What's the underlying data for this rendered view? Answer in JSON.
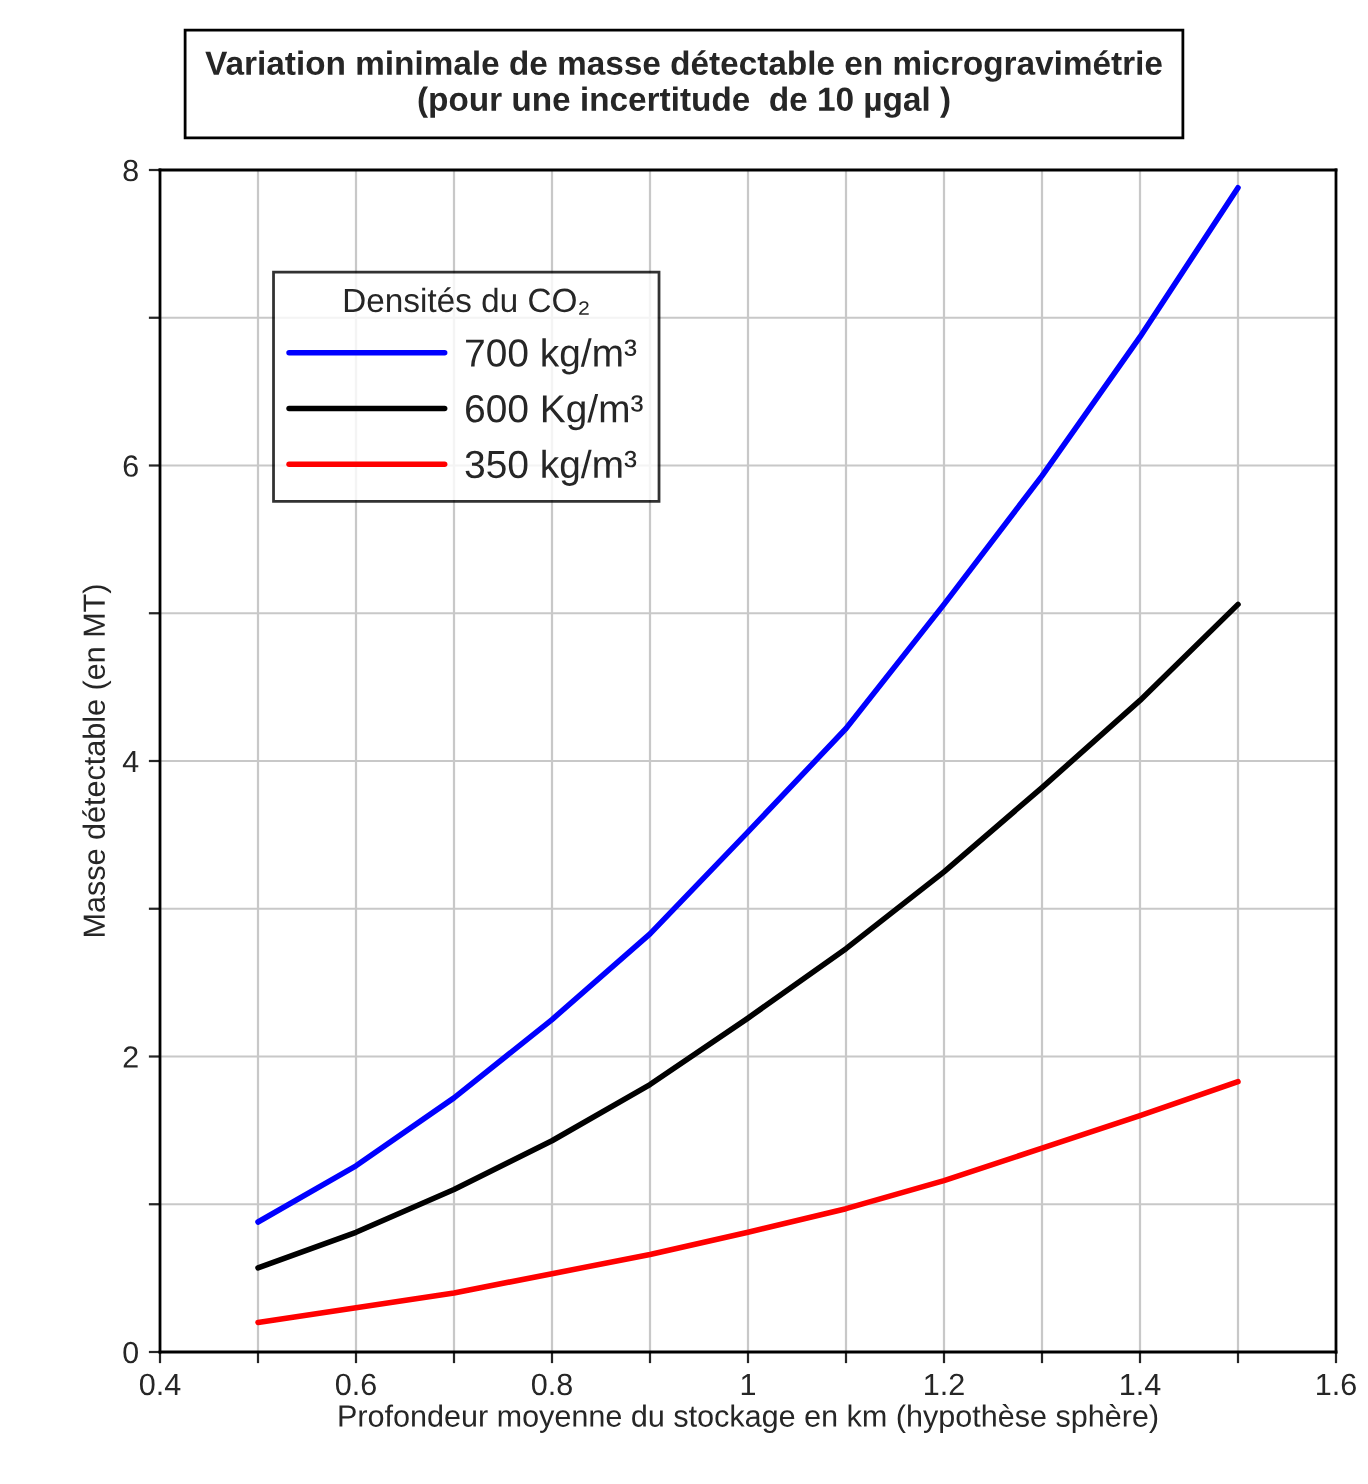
{
  "chart_data": {
    "type": "line",
    "title": "Variation minimale de masse détectable en microgravimétrie\n(pour une incertitude  de 10 µgal )",
    "xlabel": "Profondeur moyenne du stockage en km (hypothèse sphère)",
    "ylabel": "Masse détectable (en MT)",
    "legend_title": "Densités du CO₂",
    "legend": "top left",
    "grid": true,
    "marker": "none",
    "line_style": "solid",
    "x": [
      0.5,
      0.6,
      0.7,
      0.8,
      0.9,
      1.0,
      1.1,
      1.2,
      1.3,
      1.4,
      1.5
    ],
    "series": [
      {
        "name": "700 kg/m³",
        "color": "#0000ff",
        "values": [
          0.88,
          1.26,
          1.72,
          2.25,
          2.83,
          3.52,
          4.22,
          5.06,
          5.93,
          6.87,
          7.88
        ]
      },
      {
        "name": "600 Kg/m³",
        "color": "#000000",
        "values": [
          0.57,
          0.81,
          1.1,
          1.43,
          1.81,
          2.26,
          2.73,
          3.25,
          3.82,
          4.41,
          5.06
        ]
      },
      {
        "name": "350 kg/m³",
        "color": "#ff0000",
        "values": [
          0.2,
          0.3,
          0.4,
          0.53,
          0.66,
          0.81,
          0.97,
          1.16,
          1.38,
          1.6,
          1.83
        ]
      }
    ],
    "xlim": [
      0.4,
      1.6
    ],
    "ylim": [
      0,
      8
    ],
    "xticks": [
      0.4,
      {
        "value": 0.5,
        "label": null
      },
      0.6,
      {
        "value": 0.7,
        "label": null
      },
      0.8,
      {
        "value": 0.9,
        "label": null
      },
      1,
      {
        "value": 1.1,
        "label": null
      },
      1.2,
      {
        "value": 1.3,
        "label": null
      },
      1.4,
      {
        "value": 1.5,
        "label": null
      },
      1.6
    ],
    "yticks": [
      0,
      {
        "value": 1,
        "label": null
      },
      2,
      {
        "value": 3,
        "label": null
      },
      4,
      {
        "value": 5,
        "label": null
      },
      6,
      {
        "value": 7,
        "label": null
      },
      8
    ]
  }
}
